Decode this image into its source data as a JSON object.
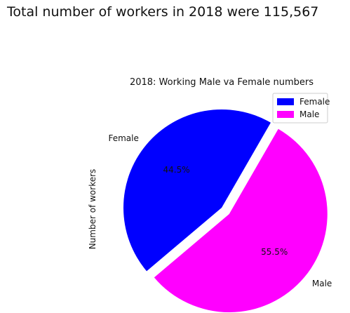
{
  "output": {
    "text": "Total number of workers in 2018 were 115,567"
  },
  "chart_data": {
    "type": "pie",
    "title": "2018: Working Male va Female numbers",
    "ylabel": "Number of workers",
    "categories": [
      "Female",
      "Male"
    ],
    "values": [
      44.5,
      55.5
    ],
    "value_labels": [
      "44.5%",
      "55.5%"
    ],
    "colors": [
      "#0000ff",
      "#ff00ff"
    ],
    "explode": [
      0,
      0.1
    ],
    "legend": {
      "placement": "upper right",
      "entries": [
        "Female",
        "Male"
      ]
    }
  }
}
